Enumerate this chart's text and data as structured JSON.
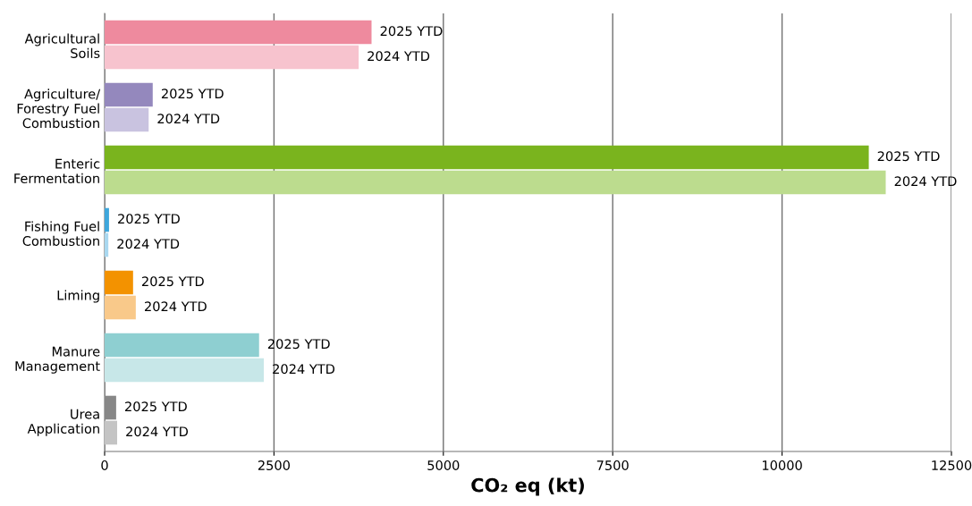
{
  "chart_data": {
    "type": "bar",
    "orientation": "horizontal",
    "xlabel": "CO₂ eq (kt)",
    "categories": [
      "Agricultural\nSoils",
      "Agriculture/\nForestry Fuel\nCombustion",
      "Enteric\nFermentation",
      "Fishing Fuel\nCombustion",
      "Liming",
      "Manure\nManagement",
      "Urea\nApplication"
    ],
    "series": [
      {
        "name": "2025 YTD",
        "colors": [
          "#ee8a9e",
          "#9488bd",
          "#7ab41e",
          "#3fa7dc",
          "#f39200",
          "#8ecfd1",
          "#878787"
        ],
        "values": [
          3940,
          710,
          11280,
          65,
          420,
          2280,
          170
        ]
      },
      {
        "name": "2024 YTD",
        "colors": [
          "#f7c3ce",
          "#c9c3e0",
          "#bcdc8e",
          "#a9d8f0",
          "#f9c98a",
          "#c7e7e8",
          "#c4c4c4"
        ],
        "values": [
          3750,
          650,
          11530,
          55,
          460,
          2350,
          185
        ]
      }
    ],
    "xlim": [
      0,
      12500
    ],
    "xticks": [
      0,
      2500,
      5000,
      7500,
      10000,
      12500
    ],
    "grid": "x",
    "legend": false
  }
}
